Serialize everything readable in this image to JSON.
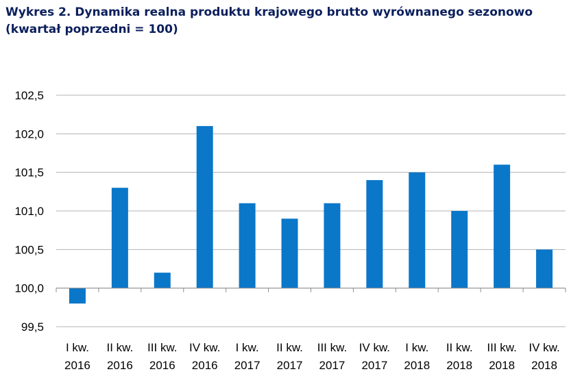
{
  "title_line1": "Wykres 2. Dynamika realna produktu krajowego brutto wyrównanego sezonowo",
  "title_line2": "(kwartał poprzedni = 100)",
  "chart_data": {
    "type": "bar",
    "title": "Wykres 2. Dynamika realna produktu krajowego brutto wyrównanego sezonowo (kwartał poprzedni = 100)",
    "xlabel": "",
    "ylabel": "",
    "categories": [
      [
        "I kw.",
        "2016"
      ],
      [
        "II kw.",
        "2016"
      ],
      [
        "III kw.",
        "2016"
      ],
      [
        "IV kw.",
        "2016"
      ],
      [
        "I kw.",
        "2017"
      ],
      [
        "II kw.",
        "2017"
      ],
      [
        "III kw.",
        "2017"
      ],
      [
        "IV kw.",
        "2017"
      ],
      [
        "I kw.",
        "2018"
      ],
      [
        "II kw.",
        "2018"
      ],
      [
        "III kw.",
        "2018"
      ],
      [
        "IV kw.",
        "2018"
      ]
    ],
    "values": [
      99.8,
      101.3,
      100.2,
      102.1,
      101.1,
      100.9,
      101.1,
      101.4,
      101.5,
      101.0,
      101.6,
      100.5
    ],
    "baseline": 100.0,
    "ylim": [
      99.5,
      102.5
    ],
    "yticks": [
      "99,5",
      "100,0",
      "100,5",
      "101,0",
      "101,5",
      "102,0",
      "102,5"
    ],
    "ytick_values": [
      99.5,
      100.0,
      100.5,
      101.0,
      101.5,
      102.0,
      102.5
    ],
    "grid": true,
    "legend": "none",
    "colors": {
      "bar": "#0a77c9",
      "grid": "#b3b3b3",
      "axis": "#8c8c8c",
      "title": "#0b1f5c"
    }
  }
}
